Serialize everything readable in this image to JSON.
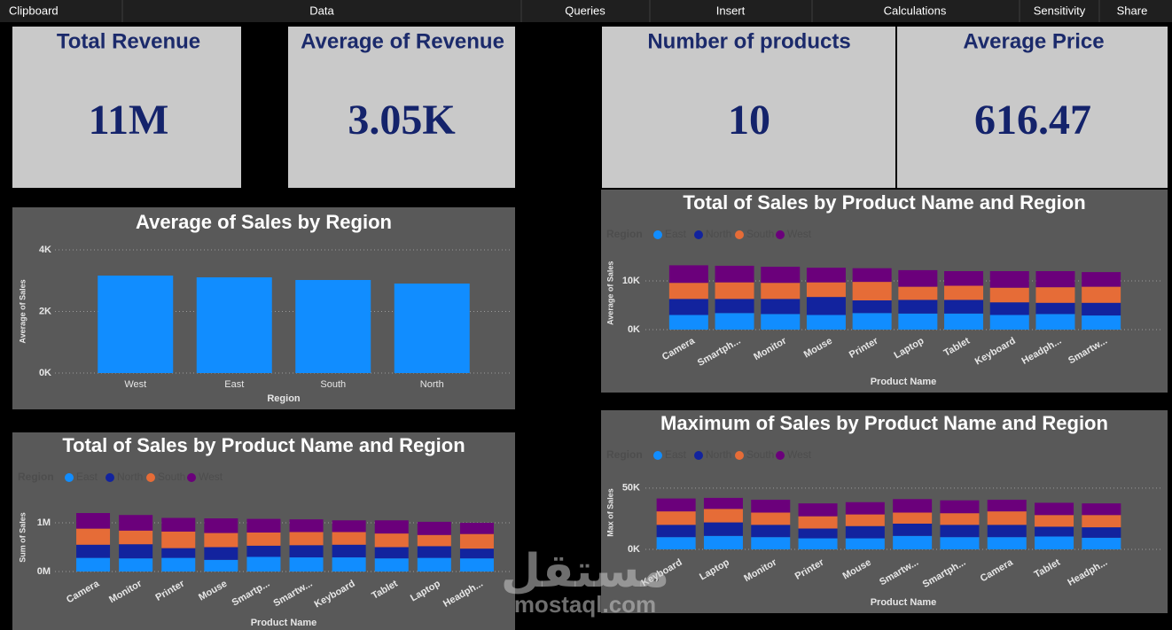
{
  "menu": [
    "Clipboard",
    "Data",
    "Queries",
    "Insert",
    "Calculations",
    "Sensitivity",
    "Share"
  ],
  "cards": [
    {
      "title": "Total Revenue",
      "value": "11M"
    },
    {
      "title": "Average of Revenue",
      "value": "3.05K"
    },
    {
      "title": "Number of products",
      "value": 10
    },
    {
      "title": "Average Price",
      "value": 616.47
    }
  ],
  "chart_data": [
    {
      "type": "bar",
      "title": "Average of Sales by Region",
      "x_label": "Region",
      "y_label": "Average of Sales",
      "categories": [
        "West",
        "East",
        "South",
        "North"
      ],
      "values": [
        3165,
        3108,
        3022,
        2906
      ],
      "color": "#118dff",
      "ylim": [
        0,
        4000
      ],
      "yticks": [
        {
          "value": 0,
          "label": "0K"
        },
        {
          "value": 2000,
          "label": "2K"
        },
        {
          "value": 4000,
          "label": "4K"
        }
      ],
      "grid": true
    },
    {
      "type": "stacked_bar",
      "title": "Total of Sales by Product Name and Region",
      "x_label": "Product Name",
      "y_label": "Average of Sales",
      "legend_title": "Region",
      "categories": [
        "Camera",
        "Smartph...",
        "Monitor",
        "Mouse",
        "Printer",
        "Laptop",
        "Tablet",
        "Keyboard",
        "Headph...",
        "Smartw..."
      ],
      "series": [
        {
          "name": "East",
          "color": "#118dff",
          "values": [
            3000,
            3400,
            3200,
            3000,
            3400,
            3300,
            3300,
            3000,
            3200,
            2900
          ]
        },
        {
          "name": "North",
          "color": "#12239e",
          "values": [
            3300,
            2900,
            3100,
            3700,
            2600,
            2800,
            2800,
            2600,
            2300,
            2600
          ]
        },
        {
          "name": "South",
          "color": "#e66c37",
          "values": [
            3300,
            3400,
            3300,
            3000,
            3800,
            2700,
            2900,
            3000,
            3200,
            3300
          ]
        },
        {
          "name": "West",
          "color": "#6b007b",
          "values": [
            3600,
            3400,
            3300,
            3000,
            2800,
            3400,
            3000,
            3400,
            3300,
            3000
          ]
        }
      ],
      "ylim": [
        0,
        15000
      ],
      "yticks": [
        {
          "value": 0,
          "label": "0K"
        },
        {
          "value": 10000,
          "label": "10K"
        }
      ],
      "grid": true
    },
    {
      "type": "stacked_bar",
      "title": "Total of Sales by Product Name and Region",
      "x_label": "Product Name",
      "y_label": "Sum of Sales",
      "legend_title": "Region",
      "categories": [
        "Camera",
        "Monitor",
        "Printer",
        "Mouse",
        "Smartp...",
        "Smartw...",
        "Keyboard",
        "Tablet",
        "Laptop",
        "Headph..."
      ],
      "series": [
        {
          "name": "East",
          "color": "#118dff",
          "values": [
            280000,
            270000,
            280000,
            240000,
            300000,
            290000,
            290000,
            270000,
            280000,
            270000
          ]
        },
        {
          "name": "North",
          "color": "#12239e",
          "values": [
            270000,
            290000,
            200000,
            260000,
            230000,
            250000,
            260000,
            230000,
            240000,
            200000
          ]
        },
        {
          "name": "South",
          "color": "#e66c37",
          "values": [
            330000,
            280000,
            340000,
            290000,
            270000,
            270000,
            260000,
            280000,
            230000,
            300000
          ]
        },
        {
          "name": "West",
          "color": "#6b007b",
          "values": [
            320000,
            320000,
            280000,
            300000,
            280000,
            260000,
            240000,
            270000,
            270000,
            230000
          ]
        }
      ],
      "ylim": [
        0,
        1400000
      ],
      "yticks": [
        {
          "value": 0,
          "label": "0M"
        },
        {
          "value": 1000000,
          "label": "1M"
        }
      ],
      "grid": true
    },
    {
      "type": "stacked_bar",
      "title": "Maximum of Sales by Product Name and Region",
      "x_label": "Product Name",
      "y_label": "Max of Sales",
      "legend_title": "Region",
      "categories": [
        "Keyboard",
        "Laptop",
        "Monitor",
        "Printer",
        "Mouse",
        "Smartw...",
        "Smartph...",
        "Camera",
        "Tablet",
        "Headph..."
      ],
      "series": [
        {
          "name": "East",
          "color": "#118dff",
          "values": [
            10000,
            11000,
            10000,
            9000,
            9000,
            11000,
            10000,
            10000,
            10500,
            9500
          ]
        },
        {
          "name": "North",
          "color": "#12239e",
          "values": [
            10000,
            11000,
            10000,
            8000,
            10000,
            10000,
            10000,
            10000,
            8000,
            8500
          ]
        },
        {
          "name": "South",
          "color": "#e66c37",
          "values": [
            11000,
            11000,
            10000,
            10000,
            9500,
            9000,
            9500,
            11000,
            9500,
            10000
          ]
        },
        {
          "name": "West",
          "color": "#6b007b",
          "values": [
            10500,
            9000,
            10500,
            10500,
            10000,
            11000,
            10500,
            9500,
            10000,
            9500
          ]
        }
      ],
      "ylim": [
        0,
        60000
      ],
      "yticks": [
        {
          "value": 0,
          "label": "0K"
        },
        {
          "value": 50000,
          "label": "50K"
        }
      ],
      "grid": true
    }
  ],
  "watermark": {
    "arabic": "مستقل",
    "latin": "mostaql.com"
  }
}
